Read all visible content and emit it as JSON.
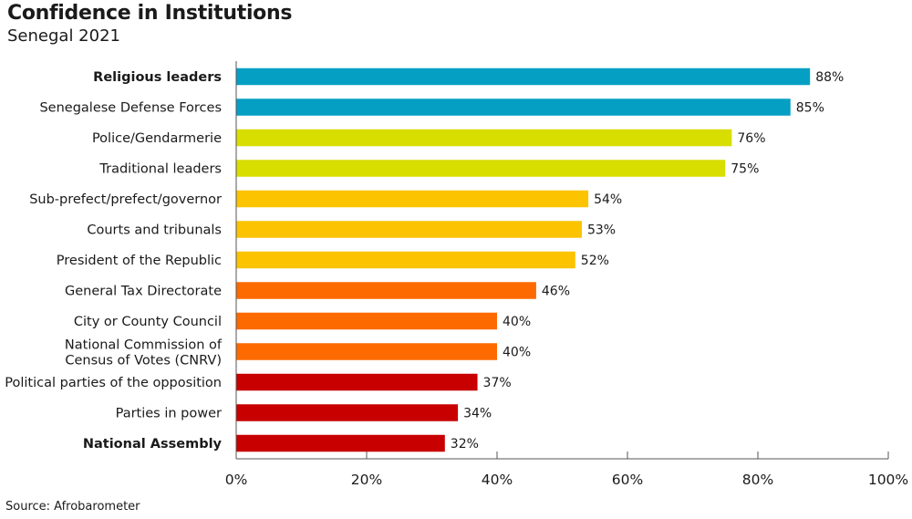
{
  "title": "Confidence in Institutions",
  "subtitle": "Senegal 2021",
  "source": "Source: Afrobarometer",
  "chart_data": {
    "type": "bar",
    "orientation": "horizontal",
    "title": "Confidence in Institutions",
    "subtitle": "Senegal 2021",
    "xlim": [
      0,
      100
    ],
    "x_ticks": [
      "0%",
      "20%",
      "40%",
      "60%",
      "80%",
      "100%"
    ],
    "grid": false,
    "categories": [
      "Religious leaders",
      "Senegalese Defense Forces",
      "Police/Gendarmerie",
      "Traditional leaders",
      "Sub-prefect/prefect/governor",
      "Courts and tribunals",
      "President of the Republic",
      "General Tax Directorate",
      "City or County Council",
      "National Commission of\nCensus of Votes (CNRV)",
      "Political parties of the opposition",
      "Parties in power",
      "National Assembly"
    ],
    "bold_categories": [
      "Religious leaders",
      "National Assembly"
    ],
    "values": [
      88,
      85,
      76,
      75,
      54,
      53,
      52,
      46,
      40,
      40,
      37,
      34,
      32
    ],
    "value_labels": [
      "88%",
      "85%",
      "76%",
      "75%",
      "54%",
      "53%",
      "52%",
      "46%",
      "40%",
      "40%",
      "37%",
      "34%",
      "32%"
    ],
    "colors": [
      "#059fc4",
      "#059fc4",
      "#d8de00",
      "#d8de00",
      "#fbc300",
      "#fbc300",
      "#fbc300",
      "#fd6a00",
      "#fd6a00",
      "#fd6a00",
      "#c80000",
      "#c80000",
      "#c80000"
    ]
  }
}
